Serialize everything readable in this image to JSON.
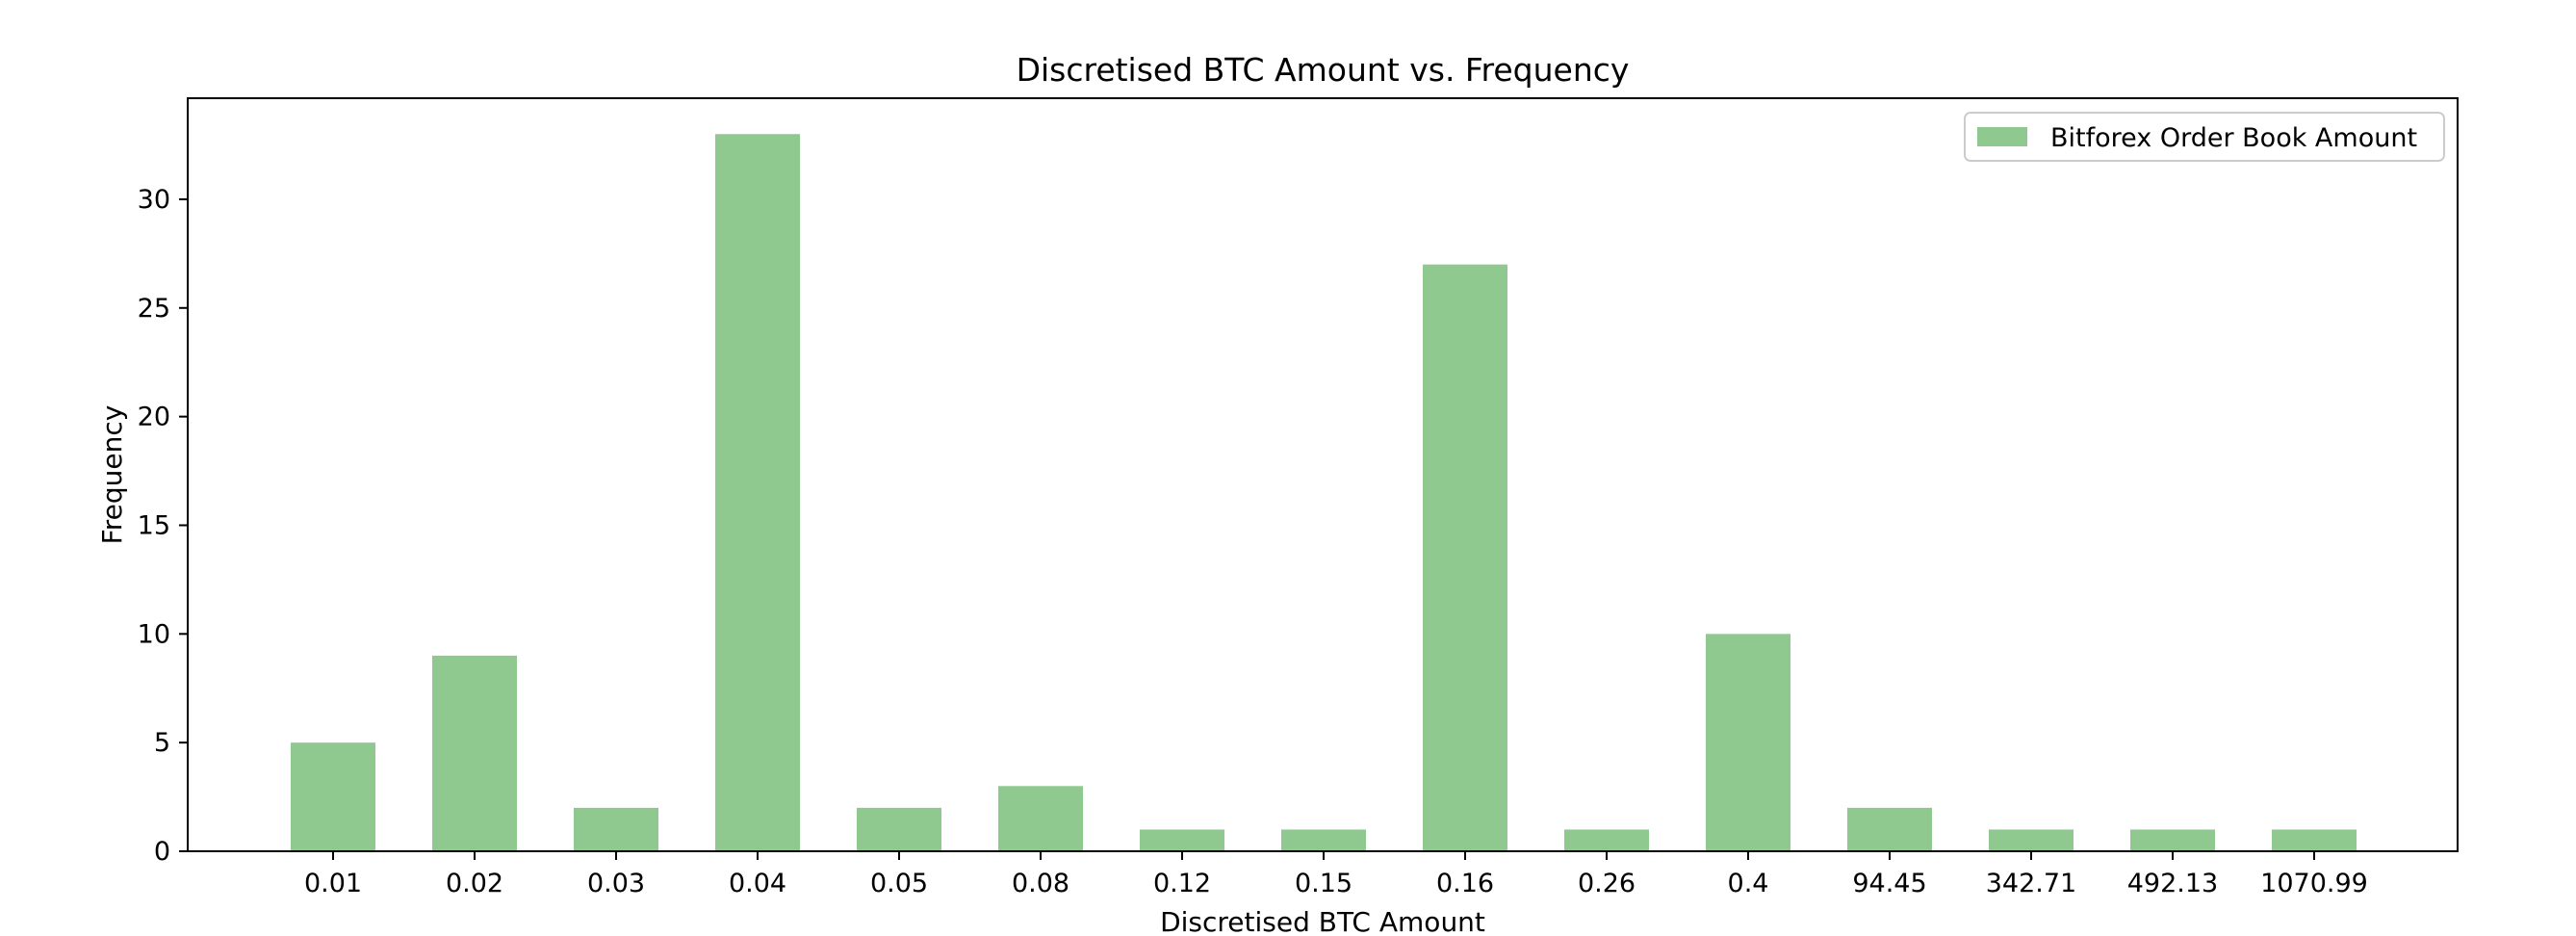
{
  "chart_data": {
    "type": "bar",
    "title": "Discretised BTC Amount vs. Frequency",
    "xlabel": "Discretised BTC Amount",
    "ylabel": "Frequency",
    "categories": [
      "0.01",
      "0.02",
      "0.03",
      "0.04",
      "0.05",
      "0.08",
      "0.12",
      "0.15",
      "0.16",
      "0.26",
      "0.4",
      "94.45",
      "342.71",
      "492.13",
      "1070.99"
    ],
    "series": [
      {
        "name": "Bitforex Order Book Amount",
        "values": [
          5,
          9,
          2,
          33,
          2,
          3,
          1,
          1,
          27,
          1,
          10,
          2,
          1,
          1,
          1
        ],
        "color": "#8fc98f"
      }
    ],
    "yticks": [
      0,
      5,
      10,
      15,
      20,
      25,
      30
    ],
    "ylim": [
      0,
      34.65
    ],
    "grid": false,
    "legend": "top-right"
  }
}
